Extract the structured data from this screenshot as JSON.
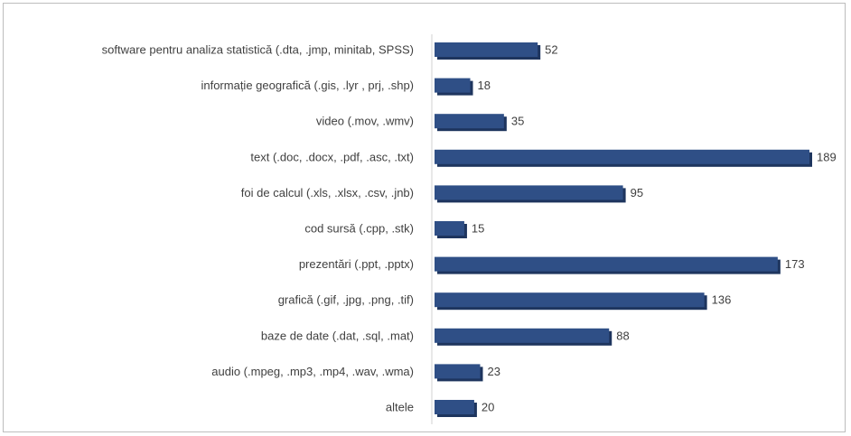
{
  "chart_data": {
    "type": "bar",
    "orientation": "horizontal",
    "title": "",
    "xlabel": "",
    "ylabel": "",
    "categories": [
      "software pentru analiza statistică (.dta, .jmp, minitab, SPSS)",
      "informație geografică (.gis, .lyr , prj, .shp)",
      "video (.mov, .wmv)",
      "text (.doc, .docx, .pdf, .asc, .txt)",
      "foi de calcul (.xls, .xlsx, .csv, .jnb)",
      "cod sursă (.cpp, .stk)",
      "prezentări (.ppt, .pptx)",
      "grafică (.gif, .jpg, .png, .tif)",
      "baze de date (.dat, .sql, .mat)",
      "audio (.mpeg, .mp3, .mp4, .wav, .wma)",
      "altele"
    ],
    "values": [
      52,
      18,
      35,
      189,
      95,
      15,
      173,
      136,
      88,
      23,
      20
    ],
    "xlim": [
      0,
      189
    ],
    "grid": false,
    "legend": "none",
    "bar_color": "#2f4f86",
    "bar_shadow_color": "#1e355e"
  }
}
